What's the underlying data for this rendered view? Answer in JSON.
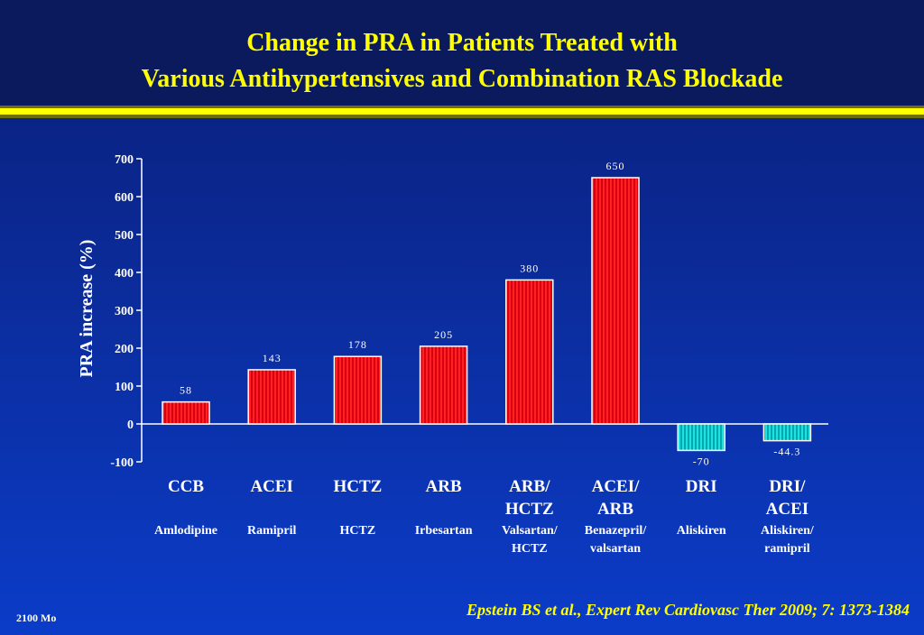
{
  "title": {
    "line1": "Change in PRA in Patients Treated with",
    "line2": "Various Antihypertensives and Combination RAS Blockade"
  },
  "chart_data": {
    "type": "bar",
    "ylabel": "PRA increase (%)",
    "ylim": [
      -100,
      700
    ],
    "yticks": [
      -100,
      0,
      100,
      200,
      300,
      400,
      500,
      600,
      700
    ],
    "grid": false,
    "categories": [
      {
        "class_lines": [
          "CCB"
        ],
        "drug_lines": [
          "Amlodipine"
        ]
      },
      {
        "class_lines": [
          "ACEI"
        ],
        "drug_lines": [
          "Ramipril"
        ]
      },
      {
        "class_lines": [
          "HCTZ"
        ],
        "drug_lines": [
          "HCTZ"
        ]
      },
      {
        "class_lines": [
          "ARB"
        ],
        "drug_lines": [
          "Irbesartan"
        ]
      },
      {
        "class_lines": [
          "ARB/",
          "HCTZ"
        ],
        "drug_lines": [
          "Valsartan/",
          "HCTZ"
        ]
      },
      {
        "class_lines": [
          "ACEI/",
          "ARB"
        ],
        "drug_lines": [
          "Benazepril/",
          "valsartan"
        ]
      },
      {
        "class_lines": [
          "DRI"
        ],
        "drug_lines": [
          "Aliskiren"
        ]
      },
      {
        "class_lines": [
          "DRI/",
          "ACEI"
        ],
        "drug_lines": [
          "Aliskiren/",
          "ramipril"
        ]
      }
    ],
    "values": [
      58,
      143,
      178,
      205,
      380,
      650,
      -70,
      -44.3
    ],
    "value_labels": [
      "58",
      "143",
      "178",
      "205",
      "380",
      "650",
      "-70",
      "-44.3"
    ],
    "colors": {
      "positive": "#ff1a1a",
      "negative": "#00cccc"
    }
  },
  "citation": "Epstein BS et al., Expert Rev Cardiovasc Ther 2009; 7: 1373-1384",
  "slide_code": "2100 Mo"
}
